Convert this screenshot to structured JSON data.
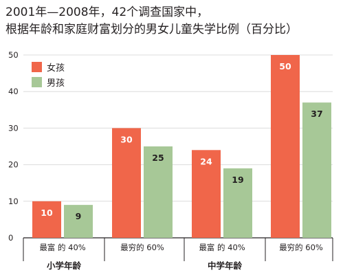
{
  "title_lines": [
    "2001年—2008年，42个调查国家中，",
    "根据年龄和家庭财富划分的男女儿童失学比例（百分比）"
  ],
  "chart_data": {
    "type": "bar",
    "title": "2001年—2008年，42个调查国家中，根据年龄和家庭财富划分的男女儿童失学比例（百分比）",
    "categories": [
      "最富 的 40%",
      "最穷的 60%",
      "最富 的 40%",
      "最穷的 60%"
    ],
    "groups": [
      {
        "label": "小学年龄",
        "categories": [
          "最富 的 40%",
          "最穷的 60%"
        ]
      },
      {
        "label": "中学年龄",
        "categories": [
          "最富 的 40%",
          "最穷的 60%"
        ]
      }
    ],
    "series": [
      {
        "name": "女孩",
        "color": "#f0664a",
        "values": [
          10,
          30,
          24,
          50
        ]
      },
      {
        "name": "男孩",
        "color": "#a7c897",
        "values": [
          9,
          25,
          19,
          37
        ]
      }
    ],
    "yticks": [
      0,
      10,
      20,
      30,
      40,
      50
    ],
    "ylim": [
      0,
      50
    ],
    "legend_position": "top-left",
    "grid": true,
    "data_labels": true
  }
}
